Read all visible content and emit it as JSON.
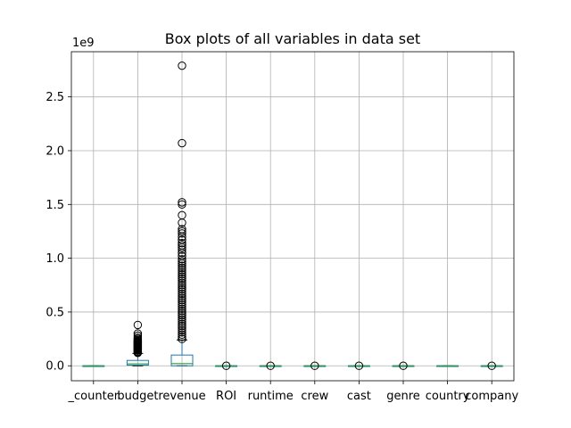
{
  "chart_data": {
    "type": "box",
    "title": "Box plots of all variables in data set",
    "xlabel": "",
    "ylabel": "",
    "y_offset_label": "1e9",
    "y_ticks": [
      "0.0",
      "0.5",
      "1.0",
      "1.5",
      "2.0",
      "2.5"
    ],
    "ylim": [
      -0.139,
      2.92
    ],
    "grid": true,
    "colors": {
      "box": "#1f77b4",
      "median": "#2ca02c",
      "whisker": "#000000",
      "flier": "#000000",
      "grid": "#b0b0b0"
    },
    "categories": [
      "_counter",
      "budget",
      "revenue",
      "ROI",
      "runtime",
      "crew",
      "cast",
      "genre",
      "country",
      "company"
    ],
    "series": [
      {
        "name": "_counter",
        "whisker_low": 0,
        "q1": 0,
        "median": 0,
        "q3": 0,
        "whisker_high": 0,
        "fliers": []
      },
      {
        "name": "budget",
        "whisker_low": 0,
        "q1": 0.006,
        "median": 0.018,
        "q3": 0.05,
        "whisker_high": 0.115,
        "fliers": [
          0.12,
          0.125,
          0.13,
          0.14,
          0.145,
          0.15,
          0.155,
          0.16,
          0.165,
          0.17,
          0.175,
          0.18,
          0.185,
          0.19,
          0.195,
          0.2,
          0.205,
          0.21,
          0.215,
          0.22,
          0.225,
          0.23,
          0.24,
          0.25,
          0.26,
          0.28,
          0.3,
          0.38
        ]
      },
      {
        "name": "revenue",
        "whisker_low": 0,
        "q1": 0.0,
        "median": 0.02,
        "q3": 0.1,
        "whisker_high": 0.24,
        "fliers": [
          0.25,
          0.27,
          0.29,
          0.31,
          0.33,
          0.35,
          0.37,
          0.39,
          0.41,
          0.43,
          0.45,
          0.47,
          0.49,
          0.51,
          0.53,
          0.55,
          0.57,
          0.59,
          0.61,
          0.63,
          0.65,
          0.67,
          0.69,
          0.71,
          0.73,
          0.75,
          0.77,
          0.79,
          0.81,
          0.83,
          0.85,
          0.87,
          0.89,
          0.91,
          0.93,
          0.95,
          0.97,
          0.99,
          1.02,
          1.05,
          1.08,
          1.1,
          1.12,
          1.14,
          1.17,
          1.2,
          1.23,
          1.25,
          1.27,
          1.33,
          1.4,
          1.5,
          1.52,
          2.07,
          2.79
        ]
      },
      {
        "name": "ROI",
        "whisker_low": 0,
        "q1": 0,
        "median": 0,
        "q3": 0,
        "whisker_high": 0,
        "fliers": [
          0.0
        ]
      },
      {
        "name": "runtime",
        "whisker_low": 0,
        "q1": 0,
        "median": 0,
        "q3": 0,
        "whisker_high": 0,
        "fliers": [
          0.0
        ]
      },
      {
        "name": "crew",
        "whisker_low": 0,
        "q1": 0,
        "median": 0,
        "q3": 0,
        "whisker_high": 0,
        "fliers": [
          0.0
        ]
      },
      {
        "name": "cast",
        "whisker_low": 0,
        "q1": 0,
        "median": 0,
        "q3": 0,
        "whisker_high": 0,
        "fliers": [
          0.0
        ]
      },
      {
        "name": "genre",
        "whisker_low": 0,
        "q1": 0,
        "median": 0,
        "q3": 0,
        "whisker_high": 0,
        "fliers": [
          0.0
        ]
      },
      {
        "name": "country",
        "whisker_low": 0,
        "q1": 0,
        "median": 0,
        "q3": 0,
        "whisker_high": 0,
        "fliers": []
      },
      {
        "name": "company",
        "whisker_low": 0,
        "q1": 0,
        "median": 0,
        "q3": 0,
        "whisker_high": 0,
        "fliers": [
          0.0
        ]
      }
    ]
  }
}
